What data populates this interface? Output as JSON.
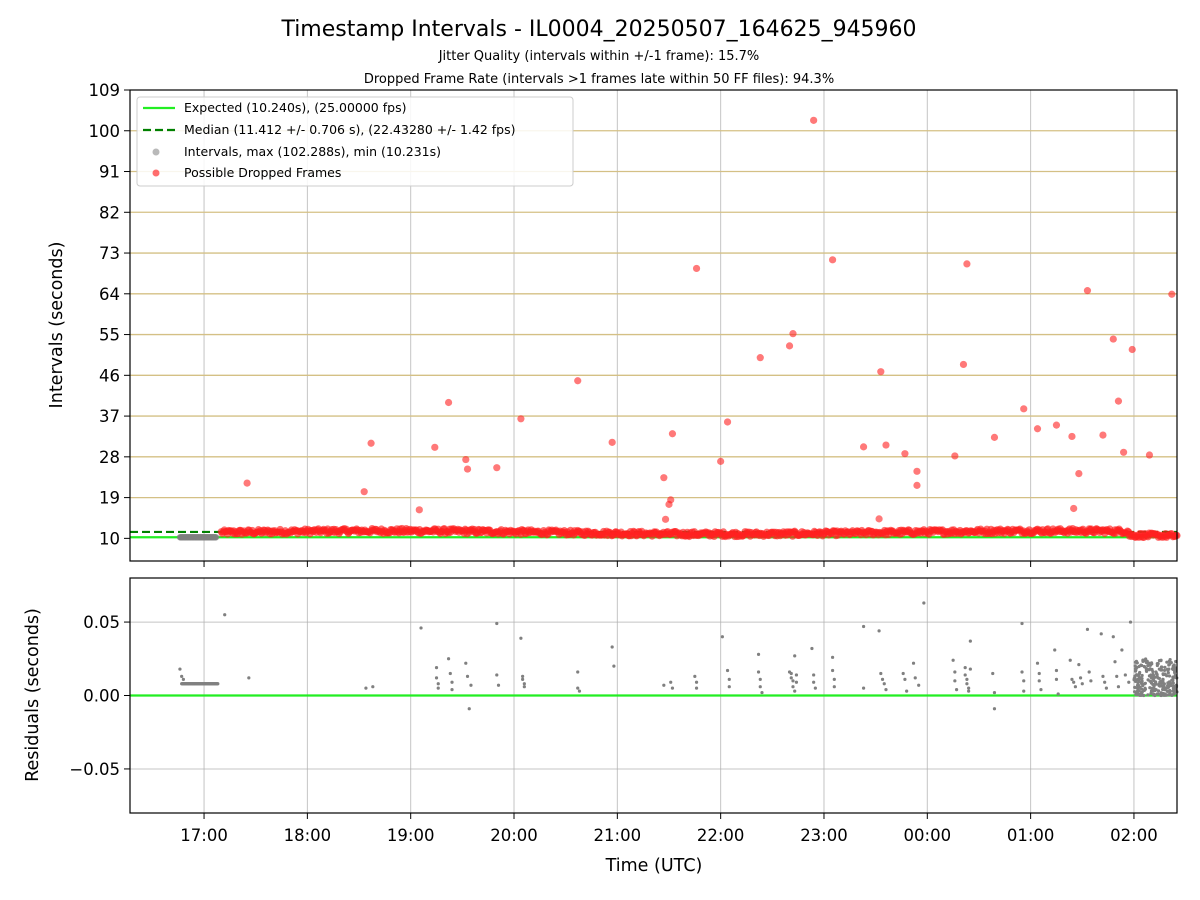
{
  "chart_data": [
    {
      "type": "scatter",
      "title": "Timestamp Intervals - IL0004_20250507_164625_945960",
      "subtitle_lines": [
        "Jitter Quality (intervals within +/-1 frame): 15.7%",
        "Dropped Frame Rate (intervals >1 frames late within 50 FF files): 94.3%"
      ],
      "xlabel": "",
      "ylabel": "Intervals (seconds)",
      "xlim": [
        "16:17",
        "02:25"
      ],
      "ylim": [
        5,
        109
      ],
      "yticks": [
        10,
        19,
        28,
        37,
        46,
        55,
        64,
        73,
        82,
        91,
        100,
        109
      ],
      "horizontal_gridlines": [
        19,
        28,
        37,
        46,
        55,
        64,
        73,
        82,
        91,
        100
      ],
      "colors": {
        "expected": "#22ee22",
        "median": "#008000",
        "intervals": "#808080",
        "dropped": "#ff2020",
        "gridline": "#d4c085"
      },
      "legend": {
        "position": "top-left",
        "entries": [
          "Expected (10.240s), (25.00000 fps)",
          "Median (11.412 +/- 0.706 s), (22.43280 +/- 1.42 fps)",
          "Intervals, max (102.288s), min (10.231s)",
          "Possible Dropped Frames"
        ]
      },
      "series": [
        {
          "name": "Expected (10.240s), (25.00000 fps)",
          "style": "line",
          "y": 10.24
        },
        {
          "name": "Median (11.412 +/- 0.706 s), (22.43280 +/- 1.42 fps)",
          "style": "dashed-line",
          "y": 11.412
        },
        {
          "name": "Intervals, max (102.288s), min (10.231s)",
          "style": "points",
          "x_range": [
            "16:46",
            "17:07"
          ],
          "y": 10.24
        },
        {
          "name": "Possible Dropped Frames",
          "style": "points",
          "dense_band": {
            "x_range": [
              "17:10",
              "02:25"
            ],
            "y_low": 10.24,
            "y_high": 12.5
          },
          "outliers": [
            [
              "17:25",
              22.2
            ],
            [
              "18:33",
              20.3
            ],
            [
              "18:37",
              31.0
            ],
            [
              "19:05",
              16.3
            ],
            [
              "19:14",
              30.1
            ],
            [
              "19:22",
              40.0
            ],
            [
              "19:32",
              27.4
            ],
            [
              "19:33",
              25.3
            ],
            [
              "19:50",
              25.6
            ],
            [
              "20:04",
              36.4
            ],
            [
              "20:37",
              44.8
            ],
            [
              "20:57",
              31.2
            ],
            [
              "21:27",
              23.4
            ],
            [
              "21:28",
              14.2
            ],
            [
              "21:30",
              17.5
            ],
            [
              "21:31",
              18.5
            ],
            [
              "21:32",
              33.1
            ],
            [
              "21:46",
              69.6
            ],
            [
              "22:00",
              27.0
            ],
            [
              "22:04",
              35.7
            ],
            [
              "22:23",
              49.9
            ],
            [
              "22:40",
              52.5
            ],
            [
              "22:42",
              55.2
            ],
            [
              "22:54",
              102.3
            ],
            [
              "23:05",
              71.5
            ],
            [
              "23:23",
              30.2
            ],
            [
              "23:32",
              14.3
            ],
            [
              "23:33",
              46.8
            ],
            [
              "23:36",
              30.6
            ],
            [
              "23:47",
              28.7
            ],
            [
              "23:54",
              24.8
            ],
            [
              "23:54",
              21.7
            ],
            [
              "00:16",
              28.2
            ],
            [
              "00:21",
              48.4
            ],
            [
              "00:23",
              70.6
            ],
            [
              "00:39",
              32.3
            ],
            [
              "00:56",
              38.6
            ],
            [
              "01:04",
              34.2
            ],
            [
              "01:15",
              35.0
            ],
            [
              "01:24",
              32.5
            ],
            [
              "01:25",
              16.6
            ],
            [
              "01:28",
              24.3
            ],
            [
              "01:33",
              64.7
            ],
            [
              "01:42",
              32.8
            ],
            [
              "01:48",
              54.0
            ],
            [
              "01:51",
              40.3
            ],
            [
              "01:54",
              29.0
            ],
            [
              "01:59",
              51.7
            ],
            [
              "02:09",
              28.4
            ],
            [
              "02:22",
              63.9
            ]
          ]
        }
      ]
    },
    {
      "type": "scatter",
      "xlabel": "Time (UTC)",
      "ylabel": "Residuals (seconds)",
      "xlim": [
        "16:17",
        "02:25"
      ],
      "ylim": [
        -0.08,
        0.08
      ],
      "xticks": [
        "17:00",
        "18:00",
        "19:00",
        "20:00",
        "21:00",
        "22:00",
        "23:00",
        "00:00",
        "01:00",
        "02:00"
      ],
      "yticks": [
        -0.05,
        0.0,
        0.05
      ],
      "ytick_labels": [
        "−0.05",
        "0.00",
        "0.05"
      ],
      "zero_line_color": "#22ee22",
      "series": [
        {
          "style": "points",
          "color": "#808080",
          "dense_band": {
            "x_range": [
              "16:47",
              "17:08"
            ],
            "y": 0.008
          },
          "dense_cluster": {
            "x_range": [
              "02:00",
              "02:25"
            ],
            "y_low": 0.0,
            "y_high": 0.025
          },
          "points": [
            [
              "16:46",
              0.018
            ],
            [
              "16:47",
              0.013
            ],
            [
              "16:48",
              0.011
            ],
            [
              "17:12",
              0.055
            ],
            [
              "17:26",
              0.012
            ],
            [
              "18:34",
              0.005
            ],
            [
              "18:38",
              0.006
            ],
            [
              "19:06",
              0.046
            ],
            [
              "19:15",
              0.019
            ],
            [
              "19:15",
              0.012
            ],
            [
              "19:16",
              0.008
            ],
            [
              "19:16",
              0.005
            ],
            [
              "19:22",
              0.025
            ],
            [
              "19:23",
              0.015
            ],
            [
              "19:24",
              0.009
            ],
            [
              "19:24",
              0.004
            ],
            [
              "19:32",
              0.022
            ],
            [
              "19:33",
              0.013
            ],
            [
              "19:34",
              -0.009
            ],
            [
              "19:35",
              0.007
            ],
            [
              "19:50",
              0.049
            ],
            [
              "19:50",
              0.014
            ],
            [
              "19:51",
              0.007
            ],
            [
              "20:04",
              0.039
            ],
            [
              "20:05",
              0.013
            ],
            [
              "20:05",
              0.011
            ],
            [
              "20:06",
              0.008
            ],
            [
              "20:06",
              0.006
            ],
            [
              "20:37",
              0.016
            ],
            [
              "20:37",
              0.005
            ],
            [
              "20:38",
              0.003
            ],
            [
              "20:57",
              0.033
            ],
            [
              "20:58",
              0.02
            ],
            [
              "21:27",
              0.007
            ],
            [
              "21:31",
              0.009
            ],
            [
              "21:32",
              0.005
            ],
            [
              "21:45",
              0.013
            ],
            [
              "21:46",
              0.009
            ],
            [
              "21:46",
              0.005
            ],
            [
              "22:01",
              0.04
            ],
            [
              "22:04",
              0.017
            ],
            [
              "22:05",
              0.011
            ],
            [
              "22:05",
              0.006
            ],
            [
              "22:22",
              0.028
            ],
            [
              "22:22",
              0.016
            ],
            [
              "22:23",
              0.011
            ],
            [
              "22:23",
              0.006
            ],
            [
              "22:24",
              0.002
            ],
            [
              "22:40",
              0.016
            ],
            [
              "22:41",
              0.015
            ],
            [
              "22:41",
              0.012
            ],
            [
              "22:42",
              0.01
            ],
            [
              "22:42",
              0.006
            ],
            [
              "22:43",
              0.003
            ],
            [
              "22:43",
              0.027
            ],
            [
              "22:44",
              0.014
            ],
            [
              "22:44",
              0.009
            ],
            [
              "22:53",
              0.032
            ],
            [
              "22:54",
              0.014
            ],
            [
              "22:54",
              0.009
            ],
            [
              "22:55",
              0.005
            ],
            [
              "23:05",
              0.026
            ],
            [
              "23:05",
              0.017
            ],
            [
              "23:06",
              0.011
            ],
            [
              "23:06",
              0.006
            ],
            [
              "23:23",
              0.047
            ],
            [
              "23:23",
              0.005
            ],
            [
              "23:32",
              0.044
            ],
            [
              "23:33",
              0.015
            ],
            [
              "23:34",
              0.011
            ],
            [
              "23:35",
              0.008
            ],
            [
              "23:36",
              0.004
            ],
            [
              "23:46",
              0.015
            ],
            [
              "23:47",
              0.011
            ],
            [
              "23:48",
              0.003
            ],
            [
              "23:52",
              0.022
            ],
            [
              "23:53",
              0.012
            ],
            [
              "23:55",
              0.007
            ],
            [
              "23:58",
              0.063
            ],
            [
              "00:15",
              0.024
            ],
            [
              "00:16",
              0.016
            ],
            [
              "00:16",
              0.01
            ],
            [
              "00:17",
              0.004
            ],
            [
              "00:22",
              0.019
            ],
            [
              "00:22",
              0.014
            ],
            [
              "00:23",
              0.011
            ],
            [
              "00:23",
              0.008
            ],
            [
              "00:24",
              0.005
            ],
            [
              "00:24",
              0.003
            ],
            [
              "00:25",
              0.037
            ],
            [
              "00:25",
              0.018
            ],
            [
              "00:38",
              0.015
            ],
            [
              "00:39",
              -0.009
            ],
            [
              "00:39",
              0.002
            ],
            [
              "00:55",
              0.049
            ],
            [
              "00:55",
              0.016
            ],
            [
              "00:56",
              0.01
            ],
            [
              "00:56",
              0.003
            ],
            [
              "01:04",
              0.022
            ],
            [
              "01:05",
              0.015
            ],
            [
              "01:05",
              0.01
            ],
            [
              "01:06",
              0.004
            ],
            [
              "01:14",
              0.031
            ],
            [
              "01:15",
              0.017
            ],
            [
              "01:15",
              0.011
            ],
            [
              "01:16",
              0.001
            ],
            [
              "01:23",
              0.024
            ],
            [
              "01:24",
              0.011
            ],
            [
              "01:25",
              0.009
            ],
            [
              "01:26",
              0.006
            ],
            [
              "01:28",
              0.021
            ],
            [
              "01:29",
              0.012
            ],
            [
              "01:30",
              0.008
            ],
            [
              "01:33",
              0.045
            ],
            [
              "01:34",
              0.016
            ],
            [
              "01:35",
              0.01
            ],
            [
              "01:41",
              0.042
            ],
            [
              "01:42",
              0.013
            ],
            [
              "01:43",
              0.009
            ],
            [
              "01:44",
              0.005
            ],
            [
              "01:48",
              0.04
            ],
            [
              "01:49",
              0.023
            ],
            [
              "01:50",
              0.013
            ],
            [
              "01:51",
              0.006
            ],
            [
              "01:53",
              0.031
            ],
            [
              "01:55",
              0.014
            ],
            [
              "01:57",
              0.009
            ],
            [
              "01:58",
              0.05
            ]
          ]
        }
      ]
    }
  ]
}
